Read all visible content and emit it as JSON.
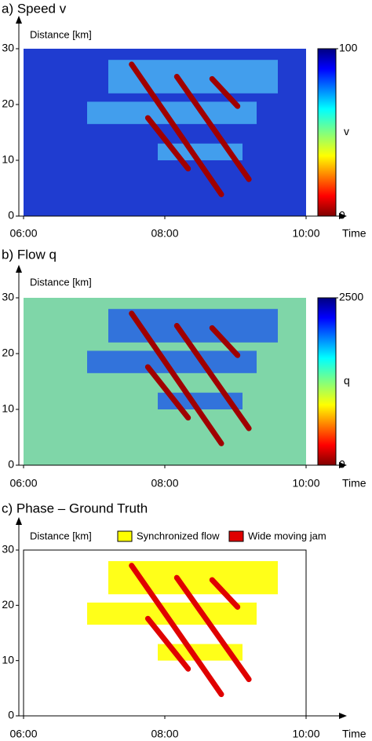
{
  "chart_data": [
    {
      "type": "heatmap",
      "title": "a) Speed v",
      "ylabel": "Distance [km]",
      "xlabel": "Time",
      "xlim": [
        6,
        10
      ],
      "xticks": [
        {
          "value": 6,
          "label": "06:00"
        },
        {
          "value": 8,
          "label": "08:00"
        },
        {
          "value": 10,
          "label": "10:00"
        }
      ],
      "ylim": [
        0,
        30
      ],
      "yticks": [
        0,
        10,
        20,
        30
      ],
      "background": "#1f3cd0",
      "frame": false,
      "colorbar": {
        "lim": [
          0,
          100
        ],
        "ticks": [
          0,
          100
        ],
        "label": "v"
      },
      "layers": [
        {
          "color": "#46a8f0",
          "regions": [
            [
              7.2,
              9.6,
              22,
              28
            ],
            [
              6.9,
              9.3,
              16.5,
              20.5
            ],
            [
              7.9,
              9.1,
              10,
              13
            ]
          ]
        },
        {
          "color": "#a00000",
          "lines": [
            [
              7.53,
              27.2,
              8.8,
              3.9
            ],
            [
              8.17,
              25,
              9.19,
              6.6
            ],
            [
              8.67,
              24.6,
              9.03,
              19.7
            ],
            [
              7.76,
              17.6,
              8.33,
              8.5
            ]
          ]
        }
      ]
    },
    {
      "type": "heatmap",
      "title": "b) Flow q",
      "ylabel": "Distance [km]",
      "xlabel": "Time",
      "xlim": [
        6,
        10
      ],
      "xticks": [
        {
          "value": 6,
          "label": "06:00"
        },
        {
          "value": 8,
          "label": "08:00"
        },
        {
          "value": 10,
          "label": "10:00"
        }
      ],
      "ylim": [
        0,
        30
      ],
      "yticks": [
        0,
        10,
        20,
        30
      ],
      "background": "#7fd6a8",
      "frame": false,
      "colorbar": {
        "lim": [
          0,
          2500
        ],
        "ticks": [
          0,
          2500
        ],
        "label": "q"
      },
      "layers": [
        {
          "color": "#2a68e0",
          "regions": [
            [
              7.2,
              9.6,
              22,
              28
            ],
            [
              6.9,
              9.3,
              16.5,
              20.5
            ],
            [
              7.9,
              9.1,
              10,
              13
            ]
          ]
        },
        {
          "color": "#a00000",
          "lines": [
            [
              7.53,
              27.2,
              8.8,
              3.9
            ],
            [
              8.17,
              25,
              9.19,
              6.6
            ],
            [
              8.67,
              24.6,
              9.03,
              19.7
            ],
            [
              7.76,
              17.6,
              8.33,
              8.5
            ]
          ]
        }
      ]
    },
    {
      "type": "heatmap",
      "title": "c) Phase – Ground Truth",
      "ylabel": "Distance [km]",
      "xlabel": "Time",
      "xlim": [
        6,
        10
      ],
      "xticks": [
        {
          "value": 6,
          "label": "06:00"
        },
        {
          "value": 8,
          "label": "08:00"
        },
        {
          "value": 10,
          "label": "10:00"
        }
      ],
      "ylim": [
        0,
        30
      ],
      "yticks": [
        0,
        10,
        20,
        30
      ],
      "background": "#ffffff",
      "frame": true,
      "layers": [
        {
          "name": "Synchronized flow",
          "color": "#ffff00",
          "regions": [
            [
              7.2,
              9.6,
              22,
              28
            ],
            [
              6.9,
              9.3,
              16.5,
              20.5
            ],
            [
              7.9,
              9.1,
              10,
              13
            ]
          ]
        },
        {
          "name": "Wide moving jam",
          "color": "#e00000",
          "lines": [
            [
              7.53,
              27.2,
              8.8,
              3.9
            ],
            [
              8.17,
              25,
              9.19,
              6.6
            ],
            [
              8.67,
              24.6,
              9.03,
              19.7
            ],
            [
              7.76,
              17.6,
              8.33,
              8.5
            ]
          ]
        }
      ]
    }
  ]
}
